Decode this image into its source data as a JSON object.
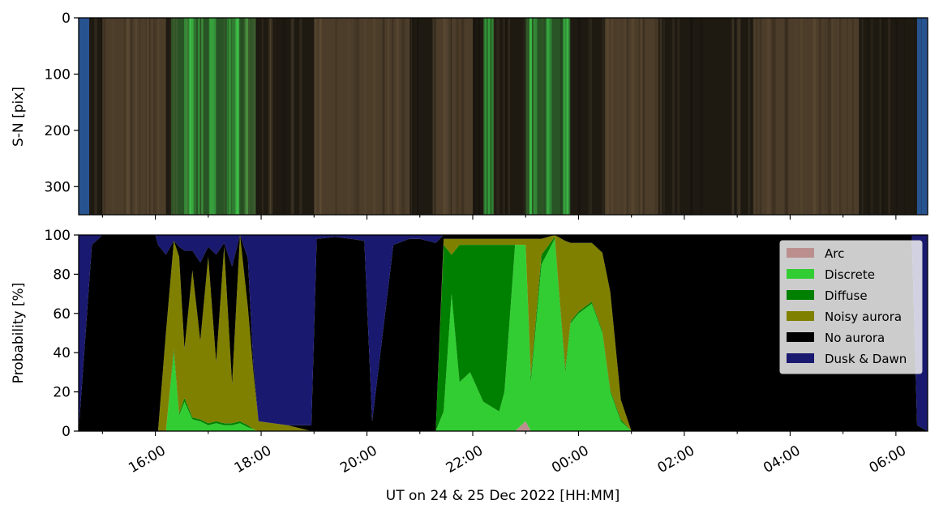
{
  "chart_data": [
    {
      "type": "heatmap",
      "panel": "keogram",
      "ylabel": "S-N [pix]",
      "ylim": [
        0,
        350
      ],
      "y_inverted": true,
      "yticks": [
        0,
        100,
        200,
        300
      ],
      "ytick_labels": [
        "0",
        "100",
        "200",
        "300"
      ],
      "colors": {
        "background": "#1e1a12",
        "brown": "#5c4a33",
        "green": "#3fc44a",
        "blue_edge": "#2a5ea8"
      },
      "bright_green_bands_hours": [
        [
          16.3,
          17.9
        ],
        [
          22.2,
          22.4
        ],
        [
          23.0,
          23.8
        ]
      ],
      "brown_regions_hours": [
        [
          15.0,
          16.2
        ],
        [
          19.0,
          20.8
        ],
        [
          21.3,
          22.0
        ],
        [
          24.5,
          25.5
        ],
        [
          27.3,
          29.3
        ]
      ],
      "blue_edges_hours": [
        [
          14.55,
          14.75
        ],
        [
          30.4,
          30.6
        ]
      ]
    },
    {
      "type": "area",
      "panel": "probability",
      "stacked": true,
      "ylabel": "Probability [%]",
      "xlabel": "UT on 24 & 25 Dec 2022 [HH:MM]",
      "ylim": [
        0,
        100
      ],
      "yticks": [
        0,
        20,
        40,
        60,
        80,
        100
      ],
      "ytick_labels": [
        "0",
        "20",
        "40",
        "60",
        "80",
        "100"
      ],
      "xlim_hours": [
        14.55,
        30.6
      ],
      "xticks_hours": [
        16,
        18,
        20,
        22,
        24,
        26,
        28,
        30
      ],
      "xtick_labels": [
        "16:00",
        "18:00",
        "20:00",
        "22:00",
        "00:00",
        "02:00",
        "04:00",
        "06:00"
      ],
      "legend_position": "top-right",
      "grid": false,
      "x": [
        14.55,
        14.8,
        15.0,
        16.0,
        16.05,
        16.2,
        16.35,
        16.45,
        16.55,
        16.7,
        16.85,
        17.0,
        17.15,
        17.3,
        17.45,
        17.6,
        17.75,
        17.85,
        17.95,
        18.5,
        18.95,
        19.05,
        19.4,
        19.7,
        19.95,
        20.1,
        20.5,
        20.8,
        21.0,
        21.3,
        21.45,
        21.6,
        21.75,
        21.95,
        22.2,
        22.5,
        22.6,
        22.8,
        23.0,
        23.1,
        23.3,
        23.55,
        23.75,
        23.85,
        24.0,
        24.25,
        24.45,
        24.6,
        24.8,
        25.0,
        26.5,
        28.0,
        28.8,
        29.2,
        30.3,
        30.4,
        30.6
      ],
      "series": [
        {
          "name": "Arc",
          "color": "#bc8f8f",
          "values": [
            0,
            0,
            0,
            0,
            0,
            0,
            0,
            0,
            0,
            0,
            0,
            0,
            0,
            0,
            0,
            0,
            0,
            0,
            0,
            0,
            0,
            0,
            0,
            0,
            0,
            0,
            0,
            0,
            0,
            0,
            0,
            0,
            0,
            0,
            0,
            0,
            0,
            0,
            5,
            0,
            0,
            0,
            0,
            0,
            0,
            0,
            0,
            0,
            0,
            0,
            0,
            0,
            0,
            0,
            0,
            0,
            0
          ]
        },
        {
          "name": "Discrete",
          "color": "#32cd32",
          "values": [
            0,
            0,
            0,
            0,
            0,
            0,
            40,
            8,
            15,
            6,
            5,
            3,
            4,
            3,
            3,
            4,
            2,
            1,
            0,
            0,
            0,
            0,
            0,
            0,
            0,
            0,
            0,
            0,
            0,
            0,
            10,
            70,
            25,
            30,
            15,
            10,
            20,
            95,
            90,
            25,
            85,
            98,
            30,
            55,
            60,
            65,
            50,
            20,
            5,
            0,
            0,
            0,
            0,
            0,
            0,
            0,
            0
          ]
        },
        {
          "name": "Diffuse",
          "color": "#008000",
          "values": [
            0,
            0,
            0,
            0,
            0,
            0,
            2,
            1,
            2,
            1,
            1,
            1,
            1,
            1,
            1,
            1,
            1,
            0,
            0,
            0,
            0,
            0,
            0,
            0,
            0,
            0,
            0,
            0,
            0,
            0,
            85,
            20,
            70,
            65,
            80,
            85,
            75,
            0,
            0,
            3,
            5,
            1,
            2,
            1,
            1,
            1,
            1,
            1,
            1,
            0,
            0,
            0,
            0,
            0,
            0,
            0,
            0
          ]
        },
        {
          "name": "Noisy aurora",
          "color": "#808000",
          "values": [
            0,
            0,
            0,
            0,
            0,
            50,
            55,
            80,
            25,
            75,
            40,
            85,
            30,
            90,
            20,
            95,
            60,
            30,
            5,
            3,
            0,
            0,
            0,
            0,
            0,
            0,
            0,
            0,
            0,
            0,
            3,
            8,
            3,
            3,
            3,
            3,
            3,
            3,
            3,
            70,
            8,
            1,
            65,
            40,
            35,
            30,
            40,
            50,
            10,
            0,
            0,
            0,
            0,
            0,
            0,
            0,
            0
          ]
        },
        {
          "name": "No aurora",
          "color": "#000000",
          "values": [
            0,
            95,
            100,
            100,
            95,
            40,
            0,
            5,
            50,
            10,
            40,
            5,
            55,
            2,
            60,
            0,
            25,
            4,
            0,
            0,
            3,
            98,
            99,
            98,
            97,
            5,
            95,
            98,
            98,
            96,
            2,
            2,
            2,
            2,
            2,
            2,
            2,
            2,
            2,
            2,
            2,
            0,
            3,
            4,
            4,
            4,
            9,
            29,
            84,
            100,
            100,
            100,
            100,
            100,
            100,
            3,
            0
          ]
        },
        {
          "name": "Dusk & Dawn",
          "color": "#191970",
          "values": [
            100,
            5,
            0,
            0,
            5,
            10,
            3,
            6,
            8,
            8,
            14,
            6,
            10,
            4,
            16,
            0,
            12,
            65,
            95,
            97,
            97,
            2,
            1,
            2,
            3,
            95,
            5,
            2,
            2,
            4,
            0,
            0,
            0,
            0,
            0,
            0,
            0,
            0,
            0,
            0,
            0,
            0,
            0,
            0,
            0,
            0,
            0,
            0,
            0,
            0,
            0,
            0,
            0,
            0,
            0,
            97,
            100
          ]
        }
      ]
    }
  ]
}
